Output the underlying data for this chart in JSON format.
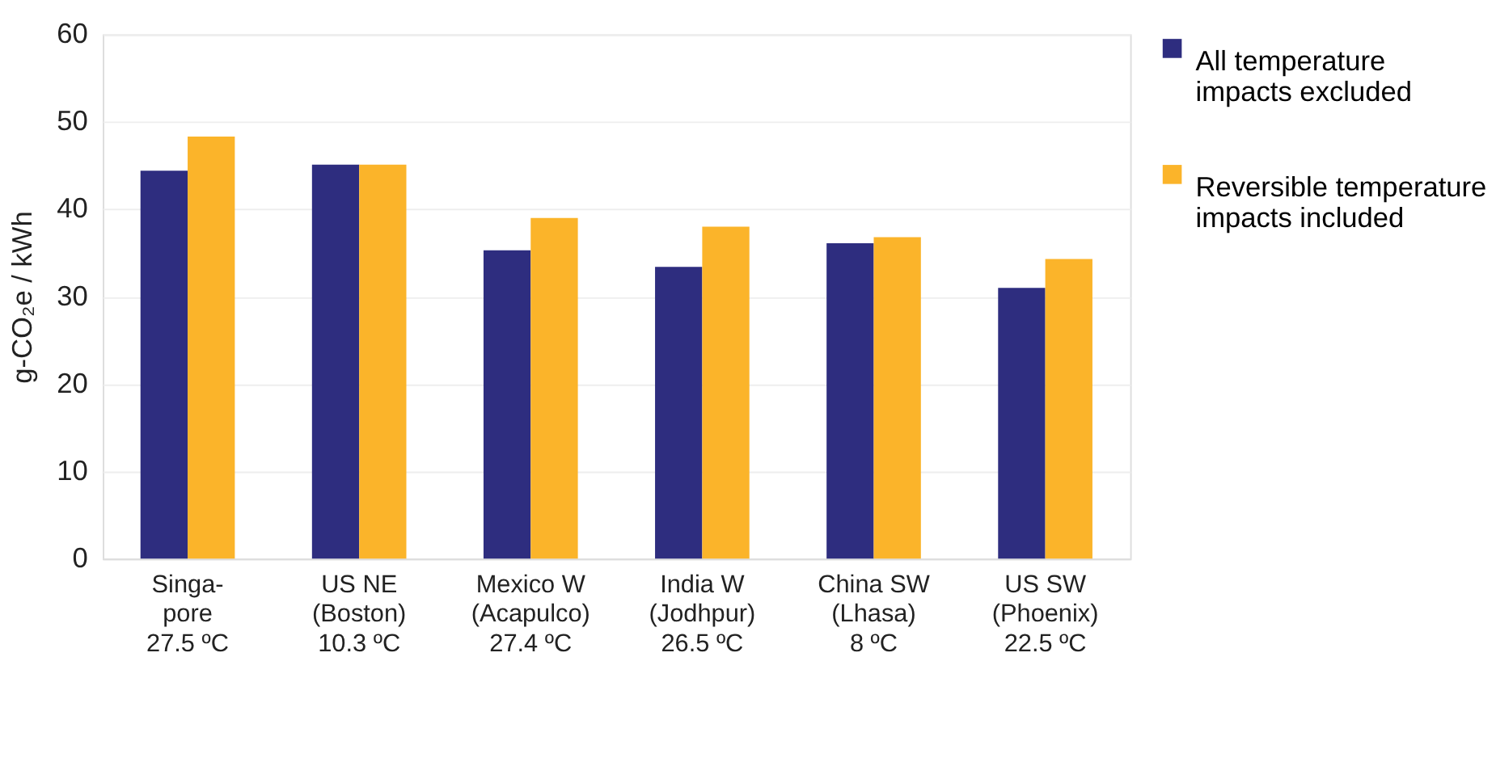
{
  "chart_data": {
    "type": "bar",
    "categories": [
      "Singa-\npore\n27.5 ºC",
      "US NE\n(Boston)\n10.3 ºC",
      "Mexico W\n(Acapulco)\n27.4 ºC",
      "India W\n(Jodhpur)\n26.5 ºC",
      "China SW\n(Lhasa)\n8 ºC",
      "US SW\n(Phoenix)\n22.5 ºC"
    ],
    "series": [
      {
        "name": "All temperature impacts excluded",
        "color": "#2e2d7f",
        "values": [
          44.4,
          45.1,
          35.3,
          33.4,
          36.1,
          31.0
        ]
      },
      {
        "name": "Reversible temperature impacts included",
        "color": "#fbb42a",
        "values": [
          48.3,
          45.1,
          39.0,
          38.0,
          36.8,
          34.3
        ]
      }
    ],
    "ylabel": "g-CO₂e / kWh",
    "ylim": [
      0,
      60
    ],
    "yticks": [
      0,
      10,
      20,
      30,
      40,
      50,
      60
    ],
    "grid": "y",
    "legend": "right"
  }
}
